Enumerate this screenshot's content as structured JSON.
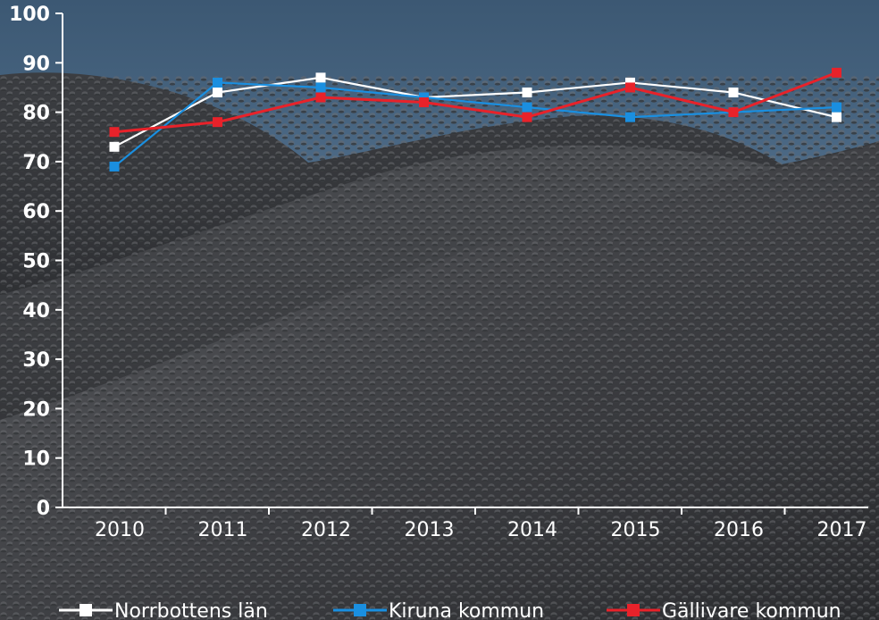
{
  "chart_data": {
    "type": "line",
    "title": "",
    "xlabel": "",
    "ylabel": "",
    "categories": [
      "2010",
      "2011",
      "2012",
      "2013",
      "2014",
      "2015",
      "2016",
      "2017"
    ],
    "y_ticks": [
      "0",
      "10",
      "20",
      "30",
      "40",
      "50",
      "60",
      "70",
      "80",
      "90",
      "100"
    ],
    "ylim": [
      0,
      100
    ],
    "grid": false,
    "legend_position": "bottom",
    "series": [
      {
        "name": "Norrbottens län",
        "color": "#ffffff",
        "values": [
          73,
          84,
          87,
          83,
          84,
          86,
          84,
          79
        ]
      },
      {
        "name": "Kiruna kommun",
        "color": "#1a8fe0",
        "values": [
          69,
          86,
          85,
          83,
          81,
          79,
          80,
          81
        ]
      },
      {
        "name": "Gällivare kommun",
        "color": "#e8222a",
        "values": [
          76,
          78,
          83,
          82,
          79,
          85,
          80,
          88
        ]
      }
    ]
  }
}
